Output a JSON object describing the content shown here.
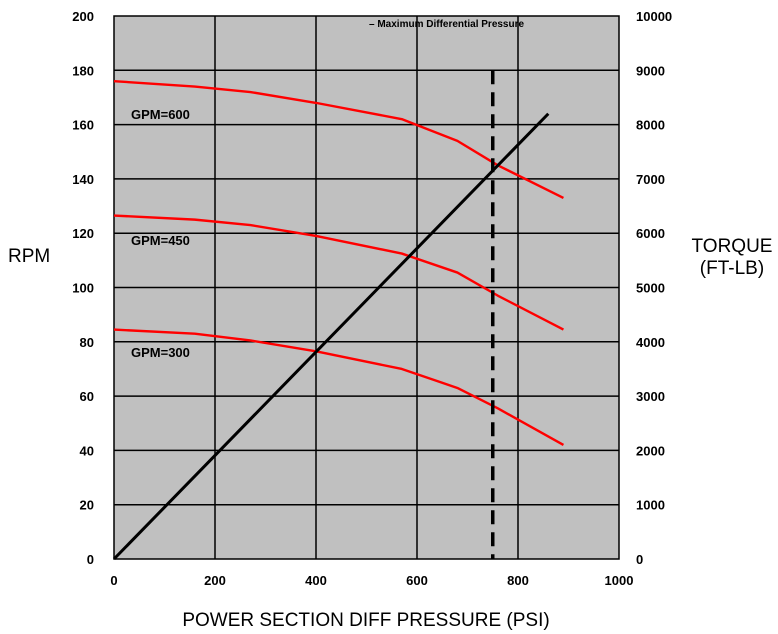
{
  "chart_data": {
    "type": "line",
    "xlabel": "POWER SECTION DIFF PRESSURE (PSI)",
    "ylabel": "RPM",
    "y2label": [
      "TORQUE",
      "(FT-LB)"
    ],
    "xlim": [
      0,
      1000
    ],
    "ylim": [
      0,
      200
    ],
    "y2lim": [
      0,
      10000
    ],
    "x_ticks": [
      0,
      200,
      400,
      600,
      800,
      1000
    ],
    "y_ticks": [
      0,
      20,
      40,
      60,
      80,
      100,
      120,
      140,
      160,
      180,
      200
    ],
    "y2_ticks": [
      0,
      1000,
      2000,
      3000,
      4000,
      5000,
      6000,
      7000,
      8000,
      9000,
      10000
    ],
    "grid": true,
    "plot_background": "#c0c0c0",
    "legend": {
      "text": "– Maximum Differential Pressure",
      "placement": "top"
    },
    "rpm_series": [
      {
        "name": "GPM=600",
        "color": "#ff0000",
        "x": [
          0,
          160,
          270,
          400,
          570,
          680,
          760,
          890
        ],
        "y": [
          176,
          174,
          172,
          168,
          162,
          154,
          145,
          133
        ]
      },
      {
        "name": "GPM=450",
        "color": "#ff0000",
        "x": [
          0,
          160,
          270,
          400,
          570,
          680,
          760,
          890
        ],
        "y": [
          126.5,
          125,
          123,
          119,
          112.5,
          105.5,
          97,
          84.5
        ]
      },
      {
        "name": "GPM=300",
        "color": "#ff0000",
        "x": [
          0,
          160,
          270,
          400,
          570,
          680,
          760,
          890
        ],
        "y": [
          84.5,
          83,
          80.5,
          76.5,
          70,
          63,
          55.5,
          42
        ]
      }
    ],
    "torque_series": {
      "color": "#000000",
      "x": [
        0,
        860
      ],
      "torque": [
        0,
        8200
      ]
    },
    "max_differential_pressure": {
      "x": 750,
      "y_top": 180,
      "color": "#000000"
    }
  }
}
